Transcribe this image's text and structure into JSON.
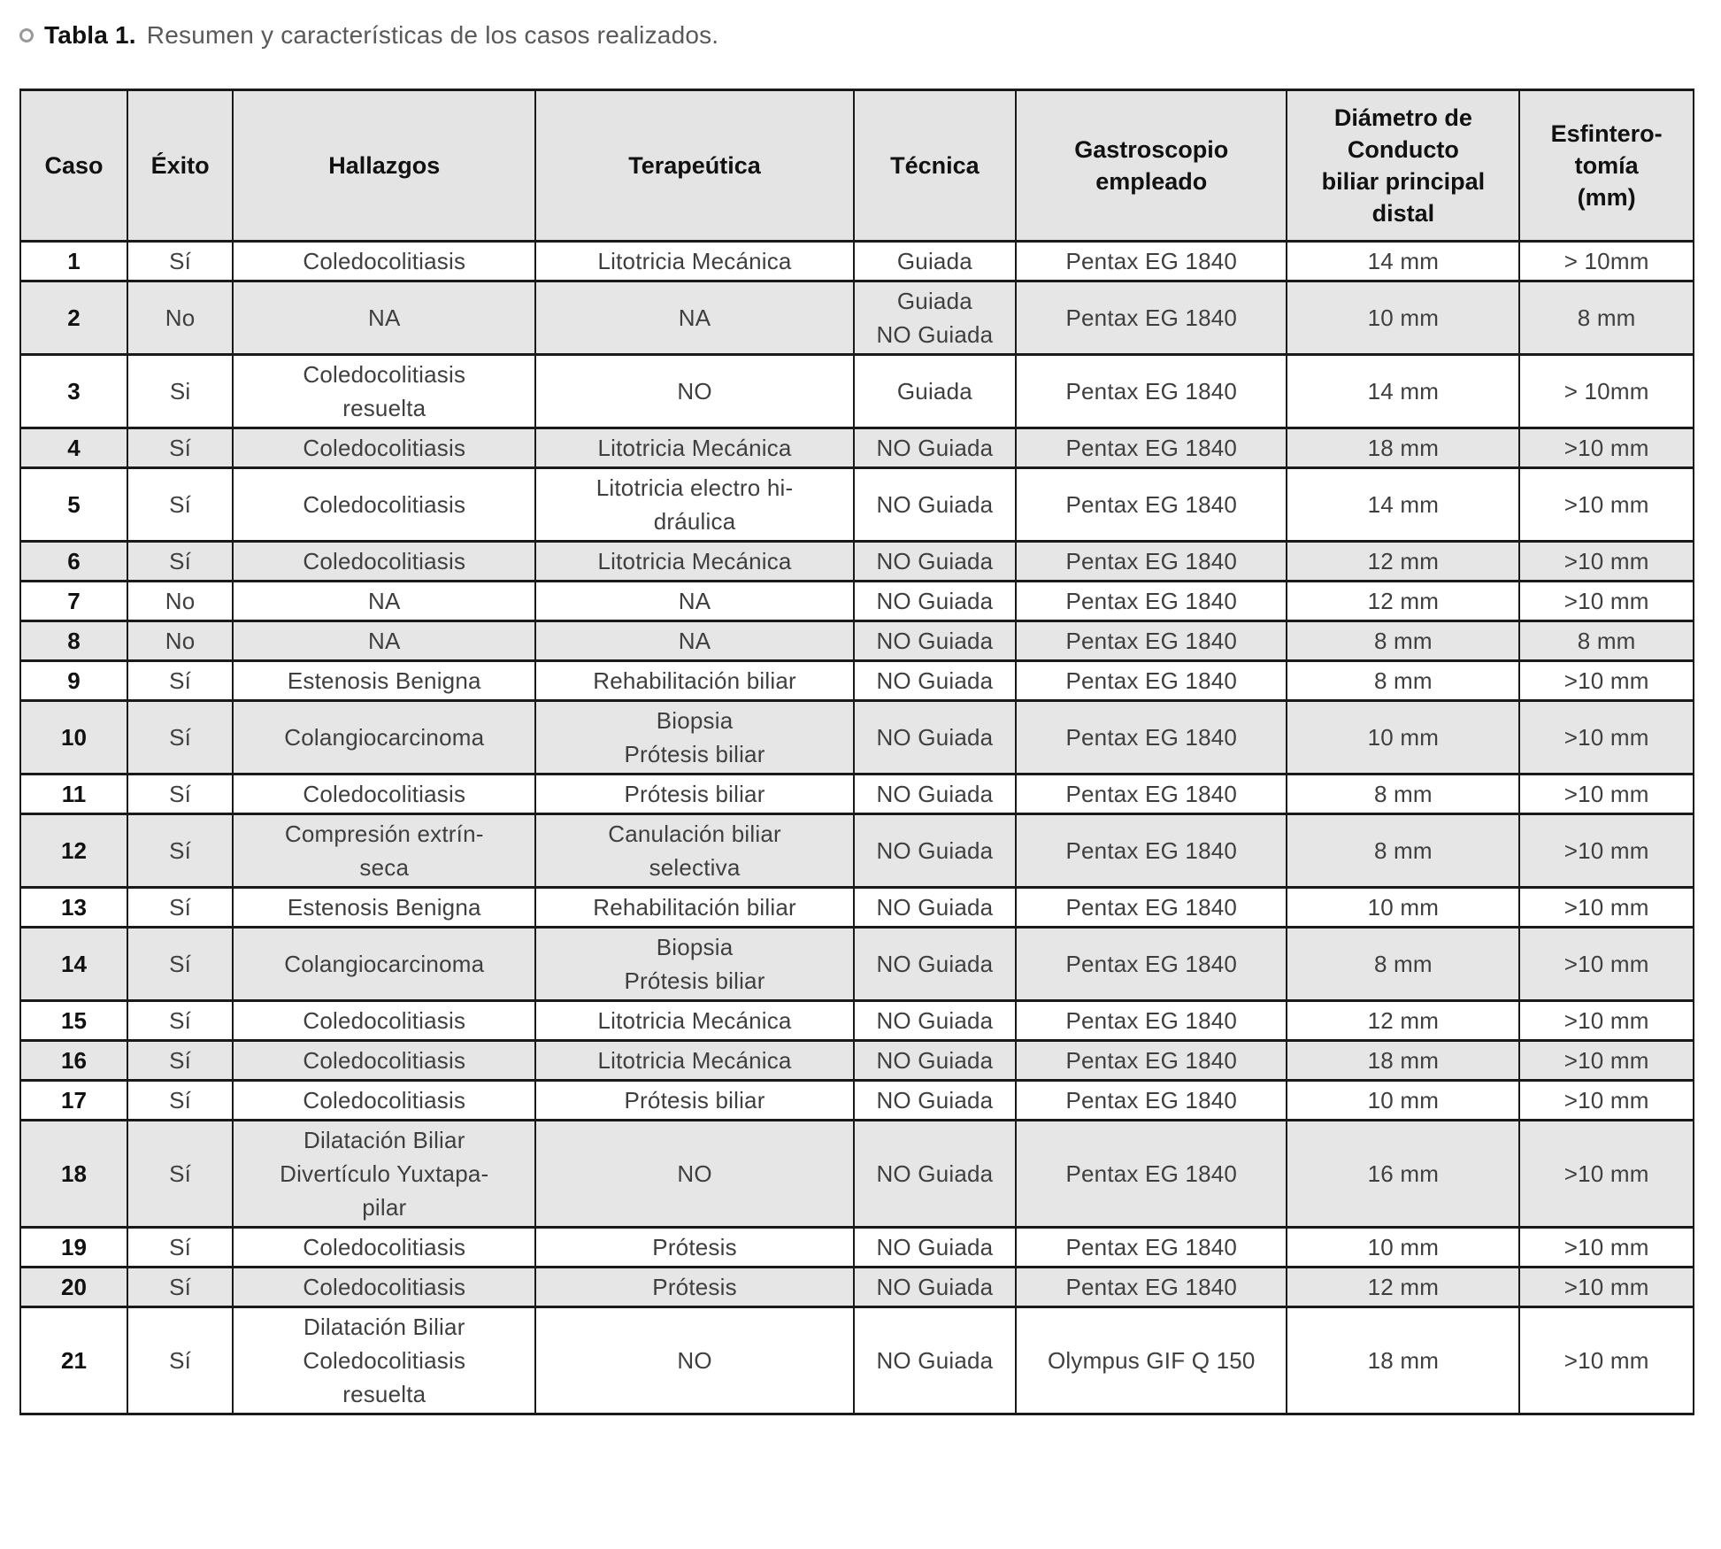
{
  "page": {
    "title": {
      "label": "Tabla 1.",
      "description": "Resumen y características de los casos realizados."
    }
  },
  "table": {
    "columns": [
      "Caso",
      "Éxito",
      "Hallazgos",
      "Terapeútica",
      "Técnica",
      "Gastroscopio\nempleado",
      "Diámetro de\nConducto\nbiliar principal\ndistal",
      "Esfintero-\ntomía\n(mm)"
    ],
    "rows": [
      [
        "1",
        "Sí",
        "Coledocolitiasis",
        "Litotricia Mecánica",
        "Guiada",
        "Pentax EG 1840",
        "14 mm",
        "> 10mm"
      ],
      [
        "2",
        "No",
        "NA",
        "NA",
        "Guiada\nNO Guiada",
        "Pentax EG 1840",
        "10 mm",
        "8 mm"
      ],
      [
        "3",
        "Si",
        "Coledocolitiasis\nresuelta",
        "NO",
        "Guiada",
        "Pentax EG 1840",
        "14 mm",
        "> 10mm"
      ],
      [
        "4",
        "Sí",
        "Coledocolitiasis",
        "Litotricia Mecánica",
        "NO Guiada",
        "Pentax EG 1840",
        "18 mm",
        ">10 mm"
      ],
      [
        "5",
        "Sí",
        "Coledocolitiasis",
        "Litotricia electro hi-\ndráulica",
        "NO Guiada",
        "Pentax EG 1840",
        "14 mm",
        ">10 mm"
      ],
      [
        "6",
        "Sí",
        "Coledocolitiasis",
        "Litotricia Mecánica",
        "NO Guiada",
        "Pentax EG 1840",
        "12 mm",
        ">10 mm"
      ],
      [
        "7",
        "No",
        "NA",
        "NA",
        "NO Guiada",
        "Pentax EG 1840",
        "12 mm",
        ">10 mm"
      ],
      [
        "8",
        "No",
        "NA",
        "NA",
        "NO Guiada",
        "Pentax EG 1840",
        "8 mm",
        "8 mm"
      ],
      [
        "9",
        "Sí",
        "Estenosis Benigna",
        "Rehabilitación biliar",
        "NO Guiada",
        "Pentax EG 1840",
        "8 mm",
        ">10 mm"
      ],
      [
        "10",
        "Sí",
        "Colangiocarcinoma",
        "Biopsia\nPrótesis biliar",
        "NO Guiada",
        "Pentax EG 1840",
        "10 mm",
        ">10 mm"
      ],
      [
        "11",
        "Sí",
        "Coledocolitiasis",
        "Prótesis biliar",
        "NO Guiada",
        "Pentax EG 1840",
        "8 mm",
        ">10 mm"
      ],
      [
        "12",
        "Sí",
        "Compresión extrín-\nseca",
        "Canulación biliar\nselectiva",
        "NO Guiada",
        "Pentax EG 1840",
        "8 mm",
        ">10 mm"
      ],
      [
        "13",
        "Sí",
        "Estenosis Benigna",
        "Rehabilitación biliar",
        "NO Guiada",
        "Pentax EG 1840",
        "10 mm",
        ">10 mm"
      ],
      [
        "14",
        "Sí",
        "Colangiocarcinoma",
        "Biopsia\nPrótesis biliar",
        "NO Guiada",
        "Pentax EG 1840",
        "8 mm",
        ">10 mm"
      ],
      [
        "15",
        "Sí",
        "Coledocolitiasis",
        "Litotricia Mecánica",
        "NO Guiada",
        "Pentax EG 1840",
        "12 mm",
        ">10 mm"
      ],
      [
        "16",
        "Sí",
        "Coledocolitiasis",
        "Litotricia Mecánica",
        "NO Guiada",
        "Pentax EG 1840",
        "18 mm",
        ">10 mm"
      ],
      [
        "17",
        "Sí",
        "Coledocolitiasis",
        "Prótesis biliar",
        "NO Guiada",
        "Pentax EG 1840",
        "10 mm",
        ">10 mm"
      ],
      [
        "18",
        "Sí",
        "Dilatación Biliar\nDivertículo Yuxtapa-\npilar",
        "NO",
        "NO Guiada",
        "Pentax EG 1840",
        "16 mm",
        ">10 mm"
      ],
      [
        "19",
        "Sí",
        "Coledocolitiasis",
        "Prótesis",
        "NO Guiada",
        "Pentax EG 1840",
        "10 mm",
        ">10 mm"
      ],
      [
        "20",
        "Sí",
        "Coledocolitiasis",
        "Prótesis",
        "NO Guiada",
        "Pentax EG 1840",
        "12 mm",
        ">10 mm"
      ],
      [
        "21",
        "Sí",
        "Dilatación Biliar\nColedocolitiasis\nresuelta",
        "NO",
        "NO Guiada",
        "Olympus GIF Q 150",
        "18 mm",
        ">10 mm"
      ]
    ]
  },
  "colors": {
    "border": "#1a1a1a",
    "header_bg": "#e4e4e4",
    "stripe_bg": "#e6e6e6",
    "body_text": "#3f3f3f",
    "strong_text": "#111111",
    "title_muted": "#595959",
    "title_ring": "#9a9a9a"
  }
}
